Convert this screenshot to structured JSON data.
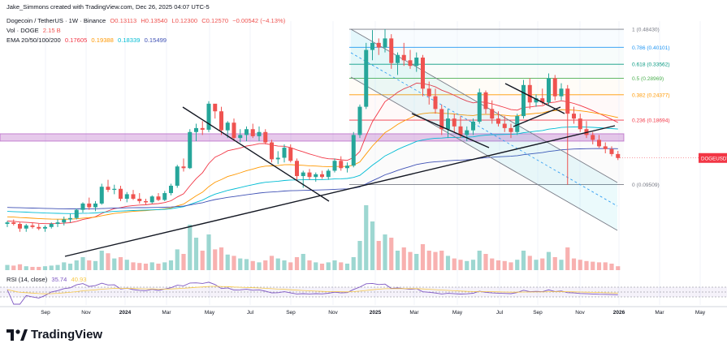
{
  "header": {
    "created_by": "Jake_Simmons created with TradingView.com, Dec 26, 2025 04:07 UTC-5",
    "symbol_line": "Dogecoin / TetherUS · 1W · Binance",
    "ohlc": {
      "o": "O0.13113",
      "h": "H0.13540",
      "l": "L0.12300",
      "c": "C0.12570",
      "chg": "−0.00542 (−4.13%)"
    },
    "vol_label": "Vol · DOGE",
    "vol_value": "2.15 B",
    "ema_label": "EMA 20/50/100/200",
    "ema_values": [
      "0.17605",
      "0.19388",
      "0.18339",
      "0.15499"
    ]
  },
  "colors": {
    "up": "#26a69a",
    "down": "#ef5350",
    "ema20": "#f23645",
    "ema50": "#ff9800",
    "ema100": "#00bcd4",
    "ema200": "#3f51b5",
    "fib_gray": "#787b86",
    "fib_blue": "#2196f3",
    "fib_teal": "#089981",
    "fib_green": "#4caf50",
    "fib_orange": "#ff9800",
    "fib_red": "#f23645",
    "zone": "#9c27b0",
    "rsi": "#7e57c2",
    "price_tag": "#f23645"
  },
  "price_tag": "DOGEUSDT",
  "chart_data": {
    "type": "candlestick",
    "title": "Dogecoin / TetherUS · 1W · Binance",
    "price_scale": "log",
    "ylim": [
      0.055,
      0.51
    ],
    "x_labels": [
      "Sep",
      "Nov",
      "2024",
      "Mar",
      "May",
      "Jul",
      "Sep",
      "Nov",
      "2025",
      "Mar",
      "May",
      "Jul",
      "Sep",
      "Nov",
      "2026",
      "Mar",
      "May"
    ],
    "x_bold": [
      "2024",
      "2025",
      "2026"
    ],
    "fib_levels": [
      {
        "label": "1 (0.48430)",
        "value": 0.4843,
        "color": "fib_gray"
      },
      {
        "label": "0.786 (0.40101)",
        "value": 0.40101,
        "color": "fib_blue"
      },
      {
        "label": "0.618 (0.33562)",
        "value": 0.33562,
        "color": "fib_teal"
      },
      {
        "label": "0.5 (0.28969)",
        "value": 0.28969,
        "color": "fib_green"
      },
      {
        "label": "0.382 (0.24377)",
        "value": 0.24377,
        "color": "fib_orange"
      },
      {
        "label": "0.236 (0.18694)",
        "value": 0.18694,
        "color": "fib_red"
      },
      {
        "label": "0 (0.09509)",
        "value": 0.09509,
        "color": "fib_gray"
      }
    ],
    "candles_ohlc_weekly": [
      [
        0.063,
        0.065,
        0.061,
        0.064
      ],
      [
        0.064,
        0.066,
        0.062,
        0.063
      ],
      [
        0.063,
        0.064,
        0.058,
        0.06
      ],
      [
        0.06,
        0.063,
        0.058,
        0.062
      ],
      [
        0.062,
        0.064,
        0.06,
        0.061
      ],
      [
        0.061,
        0.063,
        0.059,
        0.06
      ],
      [
        0.06,
        0.062,
        0.058,
        0.061
      ],
      [
        0.061,
        0.064,
        0.06,
        0.063
      ],
      [
        0.063,
        0.066,
        0.061,
        0.064
      ],
      [
        0.064,
        0.068,
        0.062,
        0.066
      ],
      [
        0.066,
        0.07,
        0.064,
        0.067
      ],
      [
        0.067,
        0.074,
        0.066,
        0.073
      ],
      [
        0.073,
        0.079,
        0.071,
        0.078
      ],
      [
        0.078,
        0.083,
        0.073,
        0.075
      ],
      [
        0.075,
        0.08,
        0.072,
        0.078
      ],
      [
        0.078,
        0.096,
        0.077,
        0.093
      ],
      [
        0.093,
        0.1,
        0.088,
        0.09
      ],
      [
        0.09,
        0.095,
        0.086,
        0.091
      ],
      [
        0.091,
        0.094,
        0.08,
        0.082
      ],
      [
        0.082,
        0.088,
        0.079,
        0.086
      ],
      [
        0.086,
        0.09,
        0.081,
        0.082
      ],
      [
        0.082,
        0.087,
        0.078,
        0.08
      ],
      [
        0.08,
        0.082,
        0.077,
        0.079
      ],
      [
        0.079,
        0.085,
        0.078,
        0.084
      ],
      [
        0.084,
        0.087,
        0.08,
        0.081
      ],
      [
        0.081,
        0.089,
        0.08,
        0.087
      ],
      [
        0.087,
        0.096,
        0.085,
        0.094
      ],
      [
        0.094,
        0.117,
        0.092,
        0.115
      ],
      [
        0.115,
        0.125,
        0.109,
        0.113
      ],
      [
        0.113,
        0.17,
        0.112,
        0.165
      ],
      [
        0.165,
        0.18,
        0.15,
        0.172
      ],
      [
        0.172,
        0.185,
        0.16,
        0.169
      ],
      [
        0.169,
        0.228,
        0.165,
        0.222
      ],
      [
        0.222,
        0.22,
        0.19,
        0.205
      ],
      [
        0.205,
        0.215,
        0.16,
        0.168
      ],
      [
        0.168,
        0.185,
        0.155,
        0.182
      ],
      [
        0.182,
        0.19,
        0.15,
        0.155
      ],
      [
        0.155,
        0.17,
        0.148,
        0.16
      ],
      [
        0.16,
        0.175,
        0.15,
        0.17
      ],
      [
        0.17,
        0.18,
        0.155,
        0.158
      ],
      [
        0.158,
        0.175,
        0.15,
        0.165
      ],
      [
        0.165,
        0.17,
        0.145,
        0.148
      ],
      [
        0.148,
        0.152,
        0.12,
        0.124
      ],
      [
        0.124,
        0.135,
        0.118,
        0.126
      ],
      [
        0.126,
        0.145,
        0.12,
        0.14
      ],
      [
        0.14,
        0.145,
        0.12,
        0.122
      ],
      [
        0.122,
        0.125,
        0.1,
        0.104
      ],
      [
        0.104,
        0.11,
        0.092,
        0.108
      ],
      [
        0.108,
        0.112,
        0.1,
        0.103
      ],
      [
        0.103,
        0.108,
        0.098,
        0.106
      ],
      [
        0.106,
        0.11,
        0.101,
        0.103
      ],
      [
        0.103,
        0.112,
        0.1,
        0.11
      ],
      [
        0.11,
        0.125,
        0.108,
        0.122
      ],
      [
        0.122,
        0.128,
        0.11,
        0.113
      ],
      [
        0.113,
        0.12,
        0.108,
        0.116
      ],
      [
        0.116,
        0.165,
        0.114,
        0.16
      ],
      [
        0.16,
        0.22,
        0.155,
        0.215
      ],
      [
        0.215,
        0.42,
        0.21,
        0.39
      ],
      [
        0.39,
        0.48,
        0.35,
        0.42
      ],
      [
        0.42,
        0.44,
        0.37,
        0.4
      ],
      [
        0.4,
        0.484,
        0.38,
        0.44
      ],
      [
        0.44,
        0.46,
        0.32,
        0.34
      ],
      [
        0.34,
        0.38,
        0.3,
        0.37
      ],
      [
        0.37,
        0.42,
        0.33,
        0.35
      ],
      [
        0.35,
        0.39,
        0.32,
        0.33
      ],
      [
        0.33,
        0.38,
        0.31,
        0.36
      ],
      [
        0.36,
        0.37,
        0.24,
        0.26
      ],
      [
        0.26,
        0.28,
        0.22,
        0.24
      ],
      [
        0.24,
        0.26,
        0.2,
        0.21
      ],
      [
        0.21,
        0.22,
        0.16,
        0.17
      ],
      [
        0.17,
        0.21,
        0.155,
        0.19
      ],
      [
        0.19,
        0.2,
        0.165,
        0.175
      ],
      [
        0.175,
        0.195,
        0.155,
        0.16
      ],
      [
        0.16,
        0.175,
        0.15,
        0.168
      ],
      [
        0.168,
        0.19,
        0.16,
        0.184
      ],
      [
        0.184,
        0.26,
        0.18,
        0.25
      ],
      [
        0.25,
        0.255,
        0.2,
        0.21
      ],
      [
        0.21,
        0.23,
        0.18,
        0.19
      ],
      [
        0.19,
        0.205,
        0.175,
        0.18
      ],
      [
        0.18,
        0.195,
        0.165,
        0.172
      ],
      [
        0.172,
        0.18,
        0.155,
        0.165
      ],
      [
        0.165,
        0.2,
        0.16,
        0.195
      ],
      [
        0.195,
        0.285,
        0.19,
        0.27
      ],
      [
        0.27,
        0.29,
        0.21,
        0.225
      ],
      [
        0.225,
        0.245,
        0.215,
        0.235
      ],
      [
        0.235,
        0.26,
        0.22,
        0.225
      ],
      [
        0.225,
        0.305,
        0.22,
        0.29
      ],
      [
        0.29,
        0.3,
        0.23,
        0.24
      ],
      [
        0.24,
        0.275,
        0.23,
        0.26
      ],
      [
        0.26,
        0.27,
        0.095,
        0.2
      ],
      [
        0.2,
        0.215,
        0.18,
        0.19
      ],
      [
        0.19,
        0.2,
        0.165,
        0.17
      ],
      [
        0.17,
        0.185,
        0.155,
        0.16
      ],
      [
        0.16,
        0.165,
        0.145,
        0.152
      ],
      [
        0.152,
        0.16,
        0.14,
        0.142
      ],
      [
        0.142,
        0.148,
        0.132,
        0.138
      ],
      [
        0.138,
        0.142,
        0.128,
        0.131
      ],
      [
        0.131,
        0.1354,
        0.123,
        0.1257
      ]
    ],
    "volume_relative": [
      0.08,
      0.07,
      0.09,
      0.06,
      0.05,
      0.05,
      0.06,
      0.07,
      0.08,
      0.12,
      0.1,
      0.15,
      0.2,
      0.15,
      0.14,
      0.3,
      0.26,
      0.18,
      0.2,
      0.16,
      0.12,
      0.11,
      0.1,
      0.12,
      0.1,
      0.12,
      0.15,
      0.32,
      0.25,
      0.7,
      0.5,
      0.3,
      0.55,
      0.32,
      0.35,
      0.24,
      0.22,
      0.18,
      0.17,
      0.14,
      0.12,
      0.15,
      0.22,
      0.18,
      0.15,
      0.12,
      0.2,
      0.25,
      0.15,
      0.12,
      0.1,
      0.12,
      0.15,
      0.12,
      0.1,
      0.2,
      0.45,
      1.0,
      0.75,
      0.45,
      0.55,
      0.5,
      0.3,
      0.35,
      0.28,
      0.25,
      0.4,
      0.3,
      0.28,
      0.3,
      0.22,
      0.18,
      0.16,
      0.14,
      0.16,
      0.3,
      0.25,
      0.18,
      0.15,
      0.14,
      0.12,
      0.16,
      0.3,
      0.22,
      0.16,
      0.18,
      0.28,
      0.2,
      0.16,
      0.35,
      0.18,
      0.16,
      0.14,
      0.13,
      0.12,
      0.12,
      0.1,
      0.06
    ],
    "ema_series": {
      "ema20": "EMA 20",
      "ema50": "EMA 50",
      "ema100": "EMA 100",
      "ema200": "EMA 200"
    },
    "resistance_zone": [
      0.15,
      0.162
    ],
    "rsi": {
      "label": "RSI (14, close)",
      "value": "35.74",
      "signal": "40.93",
      "upper": 70,
      "lower": 30
    }
  }
}
